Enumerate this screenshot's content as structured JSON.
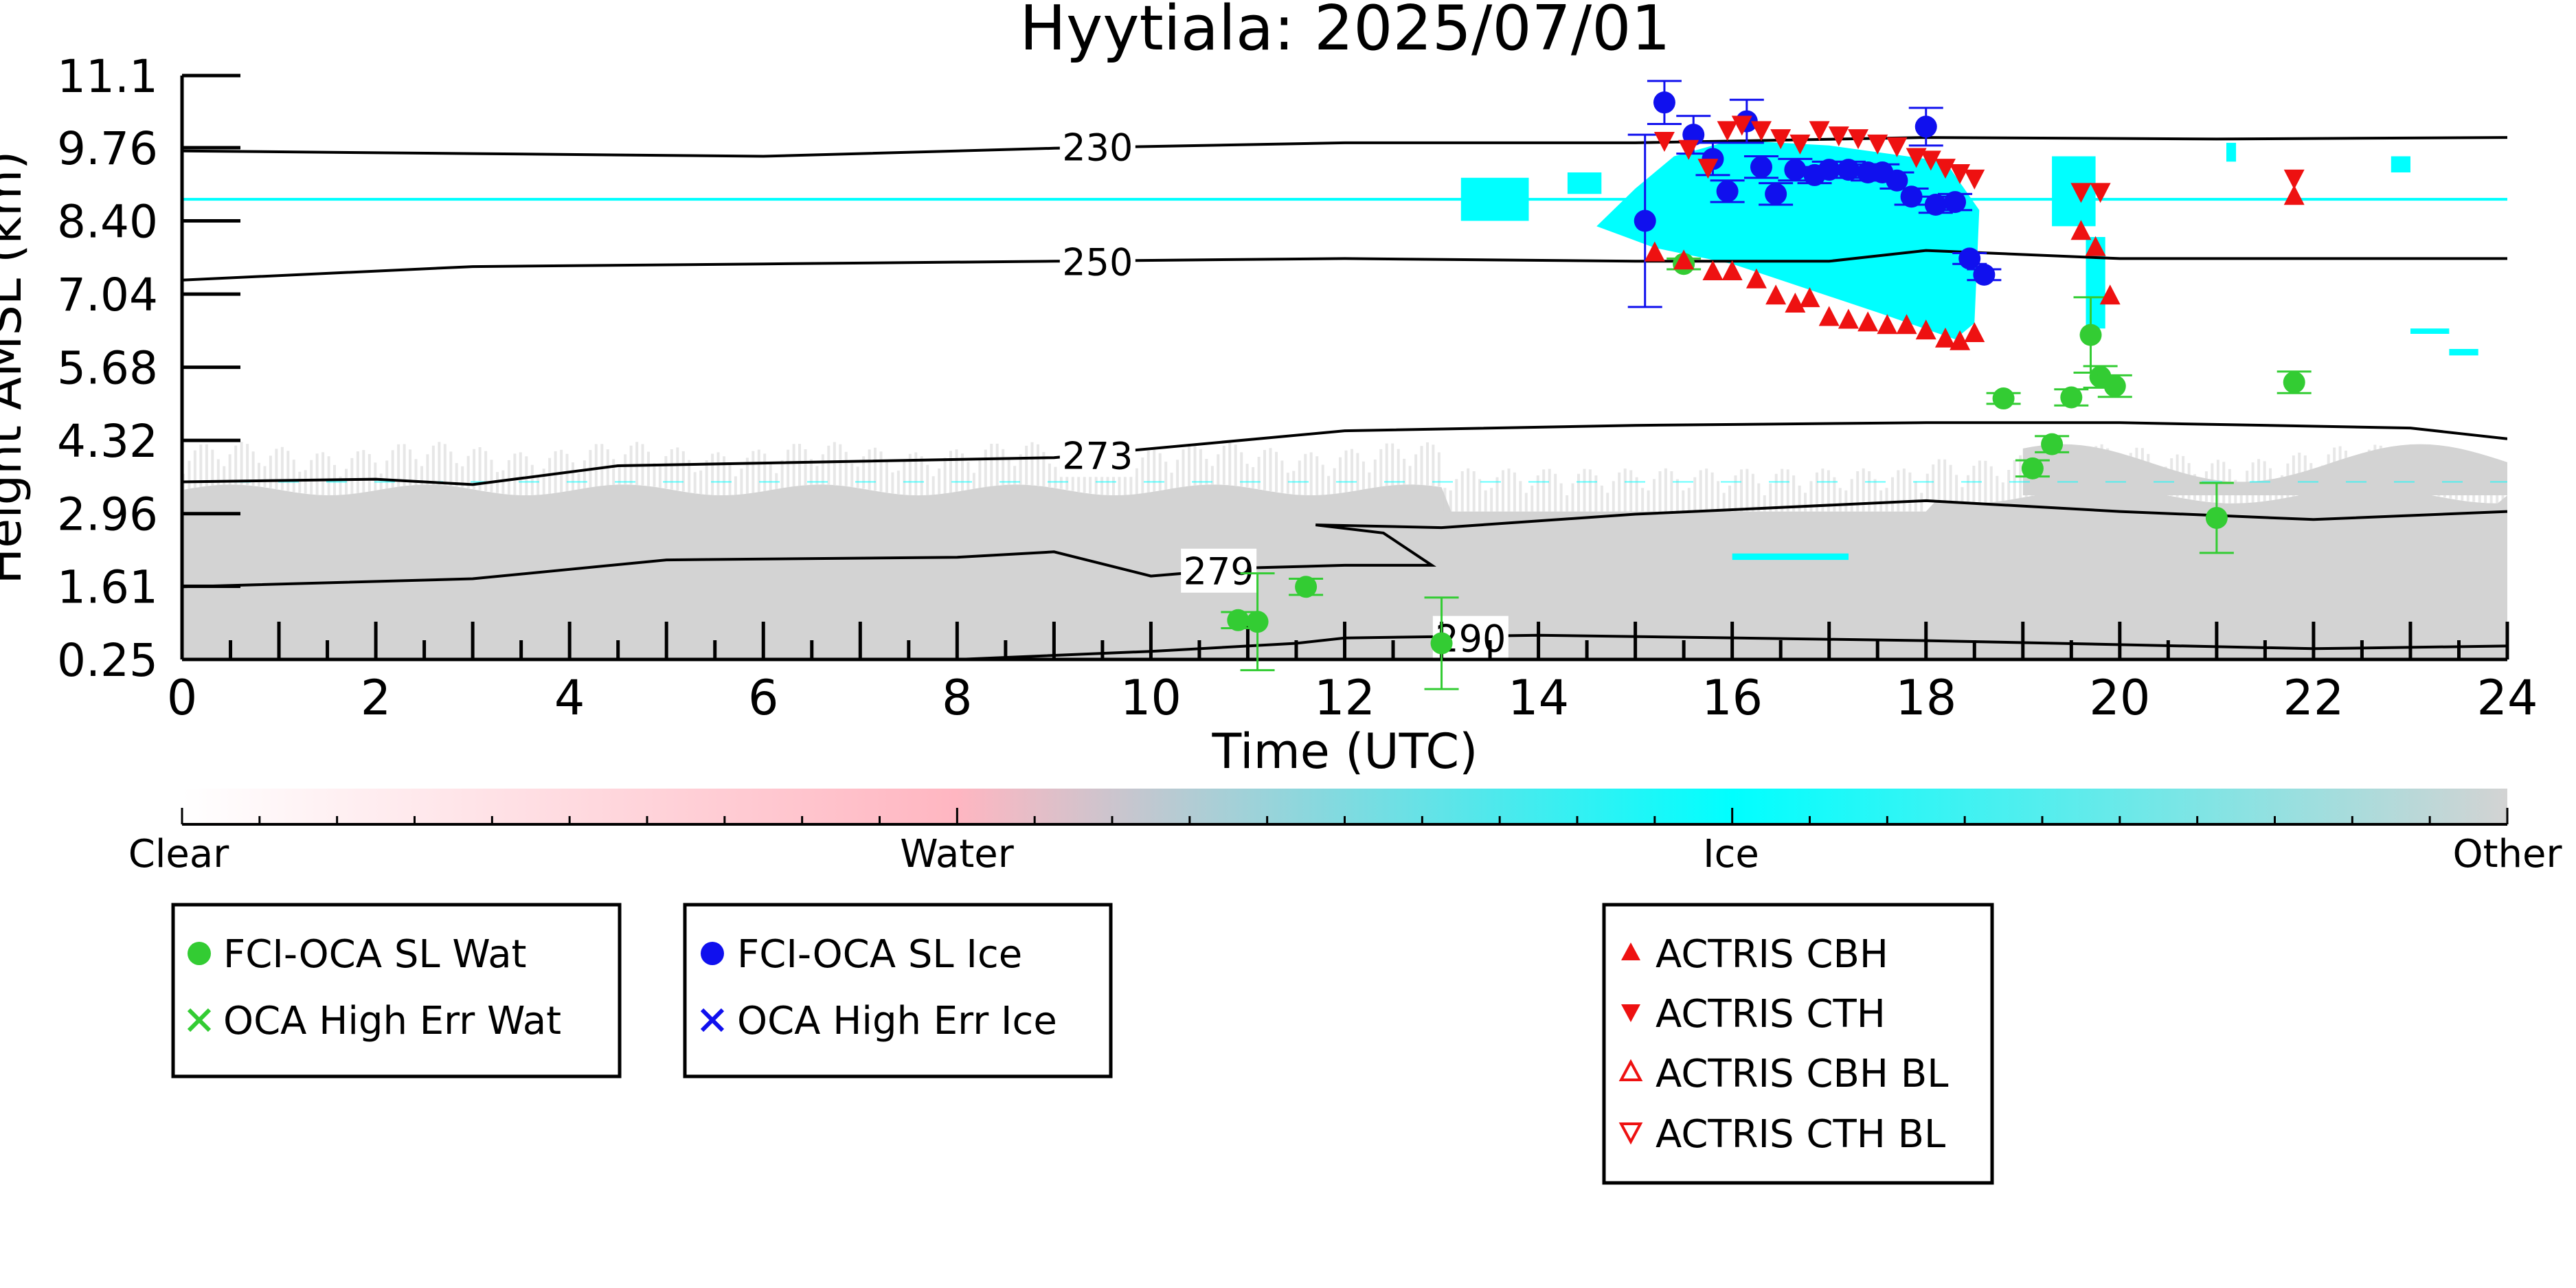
{
  "chart_data": {
    "type": "scatter",
    "title": "Hyytiala: 2025/07/01",
    "xlabel": "Time (UTC)",
    "ylabel": "Height AMSL (km)",
    "xlim": [
      0,
      24
    ],
    "ylim": [
      0.25,
      11.1
    ],
    "xticks": [
      "0",
      "2",
      "4",
      "6",
      "8",
      "10",
      "12",
      "14",
      "16",
      "18",
      "20",
      "22",
      "24"
    ],
    "yticks": [
      "0.25",
      "1.61",
      "2.96",
      "4.32",
      "5.68",
      "7.04",
      "8.40",
      "9.76",
      "11.1"
    ],
    "colorbar": {
      "labels": [
        "Clear",
        "Water",
        "Ice",
        "Other"
      ],
      "colors": [
        "#ffffff",
        "#ffb6c1",
        "#00ffff",
        "#d3d3d3"
      ]
    },
    "contours": [
      {
        "label": "230",
        "points": [
          [
            0,
            9.7
          ],
          [
            3,
            9.65
          ],
          [
            6,
            9.6
          ],
          [
            9,
            9.75
          ],
          [
            12,
            9.85
          ],
          [
            15,
            9.85
          ],
          [
            18,
            9.95
          ],
          [
            21,
            9.92
          ],
          [
            24,
            9.95
          ]
        ]
      },
      {
        "label": "250",
        "points": [
          [
            0,
            7.3
          ],
          [
            3,
            7.55
          ],
          [
            6,
            7.6
          ],
          [
            9,
            7.65
          ],
          [
            12,
            7.7
          ],
          [
            15,
            7.65
          ],
          [
            17,
            7.65
          ],
          [
            18,
            7.85
          ],
          [
            20,
            7.7
          ],
          [
            22,
            7.7
          ],
          [
            24,
            7.7
          ]
        ]
      },
      {
        "label": "273",
        "points": [
          [
            0,
            3.55
          ],
          [
            2,
            3.6
          ],
          [
            3,
            3.5
          ],
          [
            4.5,
            3.85
          ],
          [
            6,
            3.9
          ],
          [
            9,
            4.0
          ],
          [
            12,
            4.5
          ],
          [
            15,
            4.6
          ],
          [
            18,
            4.65
          ],
          [
            20,
            4.65
          ],
          [
            23,
            4.55
          ],
          [
            24,
            4.35
          ]
        ]
      },
      {
        "label": "279",
        "points": [
          [
            0,
            1.6
          ],
          [
            3,
            1.75
          ],
          [
            5,
            2.1
          ],
          [
            8,
            2.15
          ],
          [
            9,
            2.25
          ],
          [
            10,
            1.8
          ],
          [
            11,
            1.95
          ],
          [
            12,
            2.0
          ],
          [
            12.9,
            2.0
          ],
          [
            12.4,
            2.6
          ],
          [
            11.7,
            2.75
          ],
          [
            13,
            2.7
          ],
          [
            15,
            2.95
          ],
          [
            18,
            3.2
          ],
          [
            20,
            3.0
          ],
          [
            22,
            2.85
          ],
          [
            24,
            3.0
          ]
        ]
      },
      {
        "label": "290",
        "points": [
          [
            8,
            0.25
          ],
          [
            10,
            0.4
          ],
          [
            11.5,
            0.55
          ],
          [
            12,
            0.65
          ],
          [
            14,
            0.7
          ],
          [
            18,
            0.6
          ],
          [
            22,
            0.45
          ],
          [
            24,
            0.5
          ]
        ]
      }
    ],
    "series": [
      {
        "name": "FCI-OCA SL Wat",
        "color": "#33cc33",
        "marker": "circle",
        "points": [
          [
            10.9,
            0.98,
            0.15
          ],
          [
            11.1,
            0.95,
            0.9
          ],
          [
            11.6,
            1.6,
            0.15
          ],
          [
            13.0,
            0.55,
            0.85
          ],
          [
            15.5,
            7.6,
            0.1
          ],
          [
            18.8,
            5.1,
            0.1
          ],
          [
            19.1,
            3.8,
            0.15
          ],
          [
            19.3,
            4.25,
            0.15
          ],
          [
            19.5,
            5.12,
            0.15
          ],
          [
            19.7,
            6.28,
            0.7
          ],
          [
            19.8,
            5.5,
            0.2
          ],
          [
            19.95,
            5.33,
            0.2
          ],
          [
            21.0,
            2.88,
            0.65
          ],
          [
            21.8,
            5.4,
            0.2
          ]
        ]
      },
      {
        "name": "OCA High Err Wat",
        "color": "#33cc33",
        "marker": "x",
        "points": []
      },
      {
        "name": "FCI-OCA SL Ice",
        "color": "#1010ee",
        "marker": "circle",
        "points": [
          [
            15.1,
            8.4,
            1.6
          ],
          [
            15.3,
            10.6,
            0.4
          ],
          [
            15.6,
            10.0,
            0.35
          ],
          [
            15.8,
            9.55,
            0.3
          ],
          [
            15.95,
            8.95,
            0.2
          ],
          [
            16.15,
            10.25,
            0.4
          ],
          [
            16.3,
            9.4,
            0.2
          ],
          [
            16.45,
            8.9,
            0.2
          ],
          [
            16.65,
            9.35,
            0.2
          ],
          [
            16.85,
            9.25,
            0.15
          ],
          [
            17.0,
            9.35,
            0.15
          ],
          [
            17.2,
            9.35,
            0.15
          ],
          [
            17.4,
            9.3,
            0.15
          ],
          [
            17.55,
            9.3,
            0.15
          ],
          [
            17.7,
            9.15,
            0.15
          ],
          [
            17.85,
            8.85,
            0.15
          ],
          [
            18.0,
            10.15,
            0.35
          ],
          [
            18.1,
            8.7,
            0.15
          ],
          [
            18.3,
            8.75,
            0.15
          ],
          [
            18.45,
            7.7,
            0.1
          ],
          [
            18.6,
            7.4,
            0.1
          ]
        ]
      },
      {
        "name": "OCA High Err Ice",
        "color": "#1010ee",
        "marker": "x",
        "points": []
      },
      {
        "name": "ACTRIS CBH",
        "color": "#ee1111",
        "marker": "triangle-up",
        "points": [
          [
            15.2,
            7.8
          ],
          [
            15.5,
            7.65
          ],
          [
            15.8,
            7.45
          ],
          [
            16.0,
            7.45
          ],
          [
            16.25,
            7.3
          ],
          [
            16.45,
            7.0
          ],
          [
            16.65,
            6.85
          ],
          [
            16.8,
            6.95
          ],
          [
            17.0,
            6.6
          ],
          [
            17.2,
            6.55
          ],
          [
            17.4,
            6.5
          ],
          [
            17.6,
            6.45
          ],
          [
            17.8,
            6.45
          ],
          [
            18.0,
            6.35
          ],
          [
            18.2,
            6.2
          ],
          [
            18.35,
            6.15
          ],
          [
            18.5,
            6.3
          ],
          [
            19.6,
            8.2
          ],
          [
            19.75,
            7.9
          ],
          [
            19.9,
            7.0
          ],
          [
            21.8,
            8.85
          ]
        ]
      },
      {
        "name": "ACTRIS CTH",
        "color": "#ee1111",
        "marker": "triangle-down",
        "points": [
          [
            15.3,
            9.9
          ],
          [
            15.55,
            9.75
          ],
          [
            15.75,
            9.4
          ],
          [
            15.95,
            10.1
          ],
          [
            16.1,
            10.2
          ],
          [
            16.3,
            10.1
          ],
          [
            16.5,
            9.95
          ],
          [
            16.7,
            9.85
          ],
          [
            16.9,
            10.1
          ],
          [
            17.1,
            10.0
          ],
          [
            17.3,
            9.95
          ],
          [
            17.5,
            9.85
          ],
          [
            17.7,
            9.8
          ],
          [
            17.9,
            9.6
          ],
          [
            18.05,
            9.55
          ],
          [
            18.2,
            9.4
          ],
          [
            18.35,
            9.3
          ],
          [
            18.5,
            9.2
          ],
          [
            19.6,
            8.95
          ],
          [
            19.8,
            8.95
          ],
          [
            21.8,
            9.2
          ]
        ]
      },
      {
        "name": "ACTRIS CBH BL",
        "color": "#ee1111",
        "marker": "triangle-up-open",
        "points": []
      },
      {
        "name": "ACTRIS CTH BL",
        "color": "#ee1111",
        "marker": "triangle-down-open",
        "points": []
      }
    ],
    "grid": false,
    "legend_placement": "below plot, three boxes"
  }
}
